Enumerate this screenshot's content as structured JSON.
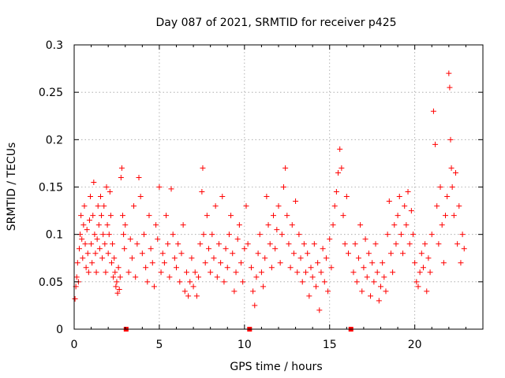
{
  "chart_data": {
    "type": "scatter",
    "title": "Day 087 of 2021, SRMTID for receiver p425",
    "xlabel": "GPS time / hours",
    "ylabel": "SRMTID / TECUs",
    "xlim": [
      0,
      24
    ],
    "ylim": [
      0,
      0.3
    ],
    "xticks": [
      0,
      5,
      10,
      15,
      20
    ],
    "xtick_labels": [
      "0",
      "5",
      "10",
      "15",
      "20"
    ],
    "yticks": [
      0,
      0.05,
      0.1,
      0.15,
      0.2,
      0.25,
      0.3
    ],
    "ytick_labels": [
      "0",
      "0.05",
      "0.1",
      "0.15",
      "0.2",
      "0.25",
      "0.3"
    ],
    "grid": true,
    "marker": "plus",
    "color": "#ff0000",
    "gap_markers_x": [
      3.05,
      10.3,
      16.25
    ],
    "series": [
      {
        "name": "SRMTID",
        "points": [
          [
            0.05,
            0.032
          ],
          [
            0.1,
            0.045
          ],
          [
            0.15,
            0.055
          ],
          [
            0.2,
            0.07
          ],
          [
            0.25,
            0.05
          ],
          [
            0.3,
            0.085
          ],
          [
            0.35,
            0.1
          ],
          [
            0.4,
            0.12
          ],
          [
            0.45,
            0.095
          ],
          [
            0.5,
            0.075
          ],
          [
            0.55,
            0.11
          ],
          [
            0.6,
            0.13
          ],
          [
            0.65,
            0.09
          ],
          [
            0.7,
            0.065
          ],
          [
            0.75,
            0.105
          ],
          [
            0.8,
            0.08
          ],
          [
            0.85,
            0.06
          ],
          [
            0.9,
            0.115
          ],
          [
            0.95,
            0.14
          ],
          [
            1.0,
            0.09
          ],
          [
            1.05,
            0.07
          ],
          [
            1.1,
            0.12
          ],
          [
            1.15,
            0.155
          ],
          [
            1.2,
            0.1
          ],
          [
            1.25,
            0.08
          ],
          [
            1.3,
            0.06
          ],
          [
            1.35,
            0.095
          ],
          [
            1.4,
            0.13
          ],
          [
            1.45,
            0.11
          ],
          [
            1.5,
            0.085
          ],
          [
            1.55,
            0.14
          ],
          [
            1.6,
            0.12
          ],
          [
            1.65,
            0.075
          ],
          [
            1.7,
            0.1
          ],
          [
            1.75,
            0.13
          ],
          [
            1.8,
            0.09
          ],
          [
            1.85,
            0.06
          ],
          [
            1.9,
            0.15
          ],
          [
            1.95,
            0.11
          ],
          [
            2.0,
            0.08
          ],
          [
            2.05,
            0.1
          ],
          [
            2.1,
            0.145
          ],
          [
            2.15,
            0.12
          ],
          [
            2.2,
            0.07
          ],
          [
            2.25,
            0.09
          ],
          [
            2.3,
            0.055
          ],
          [
            2.35,
            0.075
          ],
          [
            2.4,
            0.06
          ],
          [
            2.45,
            0.045
          ],
          [
            2.5,
            0.05
          ],
          [
            2.55,
            0.038
          ],
          [
            2.6,
            0.065
          ],
          [
            2.65,
            0.042
          ],
          [
            2.7,
            0.055
          ],
          [
            2.75,
            0.16
          ],
          [
            2.8,
            0.17
          ],
          [
            2.85,
            0.12
          ],
          [
            2.9,
            0.1
          ],
          [
            2.95,
            0.085
          ],
          [
            3.0,
            0.11
          ],
          [
            3.2,
            0.06
          ],
          [
            3.3,
            0.095
          ],
          [
            3.4,
            0.075
          ],
          [
            3.5,
            0.13
          ],
          [
            3.6,
            0.055
          ],
          [
            3.7,
            0.09
          ],
          [
            3.8,
            0.16
          ],
          [
            3.9,
            0.14
          ],
          [
            4.0,
            0.08
          ],
          [
            4.1,
            0.1
          ],
          [
            4.2,
            0.065
          ],
          [
            4.3,
            0.05
          ],
          [
            4.4,
            0.12
          ],
          [
            4.5,
            0.085
          ],
          [
            4.6,
            0.07
          ],
          [
            4.7,
            0.045
          ],
          [
            4.8,
            0.11
          ],
          [
            4.9,
            0.095
          ],
          [
            5.0,
            0.15
          ],
          [
            5.1,
            0.06
          ],
          [
            5.2,
            0.08
          ],
          [
            5.3,
            0.07
          ],
          [
            5.4,
            0.12
          ],
          [
            5.5,
            0.09
          ],
          [
            5.6,
            0.055
          ],
          [
            5.7,
            0.148
          ],
          [
            5.8,
            0.1
          ],
          [
            5.9,
            0.075
          ],
          [
            6.0,
            0.065
          ],
          [
            6.1,
            0.09
          ],
          [
            6.2,
            0.05
          ],
          [
            6.3,
            0.08
          ],
          [
            6.4,
            0.11
          ],
          [
            6.5,
            0.04
          ],
          [
            6.6,
            0.06
          ],
          [
            6.7,
            0.035
          ],
          [
            6.8,
            0.05
          ],
          [
            6.9,
            0.075
          ],
          [
            7.0,
            0.045
          ],
          [
            7.1,
            0.06
          ],
          [
            7.2,
            0.035
          ],
          [
            7.3,
            0.055
          ],
          [
            7.4,
            0.09
          ],
          [
            7.5,
            0.145
          ],
          [
            7.55,
            0.17
          ],
          [
            7.6,
            0.1
          ],
          [
            7.7,
            0.07
          ],
          [
            7.8,
            0.12
          ],
          [
            7.9,
            0.085
          ],
          [
            8.0,
            0.06
          ],
          [
            8.1,
            0.1
          ],
          [
            8.2,
            0.075
          ],
          [
            8.3,
            0.13
          ],
          [
            8.4,
            0.055
          ],
          [
            8.5,
            0.09
          ],
          [
            8.6,
            0.07
          ],
          [
            8.7,
            0.14
          ],
          [
            8.8,
            0.05
          ],
          [
            8.9,
            0.085
          ],
          [
            9.0,
            0.065
          ],
          [
            9.1,
            0.1
          ],
          [
            9.2,
            0.12
          ],
          [
            9.3,
            0.08
          ],
          [
            9.4,
            0.04
          ],
          [
            9.5,
            0.06
          ],
          [
            9.6,
            0.095
          ],
          [
            9.7,
            0.11
          ],
          [
            9.8,
            0.07
          ],
          [
            9.9,
            0.05
          ],
          [
            10.0,
            0.085
          ],
          [
            10.1,
            0.13
          ],
          [
            10.2,
            0.09
          ],
          [
            10.4,
            0.065
          ],
          [
            10.5,
            0.04
          ],
          [
            10.6,
            0.025
          ],
          [
            10.7,
            0.055
          ],
          [
            10.8,
            0.08
          ],
          [
            10.9,
            0.1
          ],
          [
            11.0,
            0.06
          ],
          [
            11.1,
            0.045
          ],
          [
            11.2,
            0.075
          ],
          [
            11.3,
            0.14
          ],
          [
            11.4,
            0.11
          ],
          [
            11.5,
            0.09
          ],
          [
            11.6,
            0.065
          ],
          [
            11.7,
            0.12
          ],
          [
            11.8,
            0.085
          ],
          [
            11.9,
            0.105
          ],
          [
            12.0,
            0.13
          ],
          [
            12.1,
            0.07
          ],
          [
            12.2,
            0.1
          ],
          [
            12.3,
            0.15
          ],
          [
            12.4,
            0.17
          ],
          [
            12.5,
            0.12
          ],
          [
            12.6,
            0.09
          ],
          [
            12.7,
            0.065
          ],
          [
            12.8,
            0.11
          ],
          [
            12.9,
            0.08
          ],
          [
            13.0,
            0.135
          ],
          [
            13.1,
            0.06
          ],
          [
            13.2,
            0.1
          ],
          [
            13.3,
            0.075
          ],
          [
            13.4,
            0.05
          ],
          [
            13.5,
            0.09
          ],
          [
            13.6,
            0.06
          ],
          [
            13.7,
            0.08
          ],
          [
            13.8,
            0.035
          ],
          [
            13.9,
            0.065
          ],
          [
            14.0,
            0.055
          ],
          [
            14.1,
            0.09
          ],
          [
            14.2,
            0.045
          ],
          [
            14.3,
            0.07
          ],
          [
            14.4,
            0.02
          ],
          [
            14.5,
            0.06
          ],
          [
            14.6,
            0.085
          ],
          [
            14.7,
            0.05
          ],
          [
            14.8,
            0.075
          ],
          [
            14.9,
            0.04
          ],
          [
            15.0,
            0.095
          ],
          [
            15.1,
            0.065
          ],
          [
            15.2,
            0.11
          ],
          [
            15.3,
            0.13
          ],
          [
            15.4,
            0.145
          ],
          [
            15.5,
            0.165
          ],
          [
            15.6,
            0.19
          ],
          [
            15.7,
            0.17
          ],
          [
            15.8,
            0.12
          ],
          [
            15.9,
            0.09
          ],
          [
            16.0,
            0.14
          ],
          [
            16.1,
            0.08
          ],
          [
            16.4,
            0.06
          ],
          [
            16.5,
            0.09
          ],
          [
            16.6,
            0.05
          ],
          [
            16.7,
            0.075
          ],
          [
            16.8,
            0.11
          ],
          [
            16.9,
            0.04
          ],
          [
            17.0,
            0.065
          ],
          [
            17.1,
            0.095
          ],
          [
            17.2,
            0.055
          ],
          [
            17.3,
            0.08
          ],
          [
            17.4,
            0.035
          ],
          [
            17.5,
            0.07
          ],
          [
            17.6,
            0.05
          ],
          [
            17.7,
            0.09
          ],
          [
            17.8,
            0.06
          ],
          [
            17.9,
            0.03
          ],
          [
            18.0,
            0.045
          ],
          [
            18.1,
            0.07
          ],
          [
            18.2,
            0.055
          ],
          [
            18.3,
            0.04
          ],
          [
            18.4,
            0.1
          ],
          [
            18.5,
            0.135
          ],
          [
            18.6,
            0.08
          ],
          [
            18.7,
            0.06
          ],
          [
            18.8,
            0.11
          ],
          [
            18.9,
            0.09
          ],
          [
            19.0,
            0.12
          ],
          [
            19.1,
            0.14
          ],
          [
            19.2,
            0.1
          ],
          [
            19.3,
            0.08
          ],
          [
            19.4,
            0.13
          ],
          [
            19.5,
            0.11
          ],
          [
            19.6,
            0.145
          ],
          [
            19.7,
            0.09
          ],
          [
            19.8,
            0.125
          ],
          [
            19.9,
            0.1
          ],
          [
            20.0,
            0.07
          ],
          [
            20.1,
            0.05
          ],
          [
            20.2,
            0.045
          ],
          [
            20.3,
            0.06
          ],
          [
            20.4,
            0.08
          ],
          [
            20.5,
            0.065
          ],
          [
            20.6,
            0.09
          ],
          [
            20.7,
            0.04
          ],
          [
            20.8,
            0.075
          ],
          [
            20.9,
            0.06
          ],
          [
            21.0,
            0.1
          ],
          [
            21.1,
            0.23
          ],
          [
            21.2,
            0.195
          ],
          [
            21.3,
            0.13
          ],
          [
            21.4,
            0.09
          ],
          [
            21.5,
            0.15
          ],
          [
            21.6,
            0.11
          ],
          [
            21.7,
            0.07
          ],
          [
            21.8,
            0.12
          ],
          [
            21.9,
            0.14
          ],
          [
            22.0,
            0.27
          ],
          [
            22.05,
            0.255
          ],
          [
            22.1,
            0.2
          ],
          [
            22.15,
            0.17
          ],
          [
            22.2,
            0.15
          ],
          [
            22.3,
            0.12
          ],
          [
            22.4,
            0.165
          ],
          [
            22.5,
            0.09
          ],
          [
            22.6,
            0.13
          ],
          [
            22.7,
            0.07
          ],
          [
            22.8,
            0.1
          ],
          [
            22.9,
            0.085
          ]
        ]
      }
    ]
  }
}
